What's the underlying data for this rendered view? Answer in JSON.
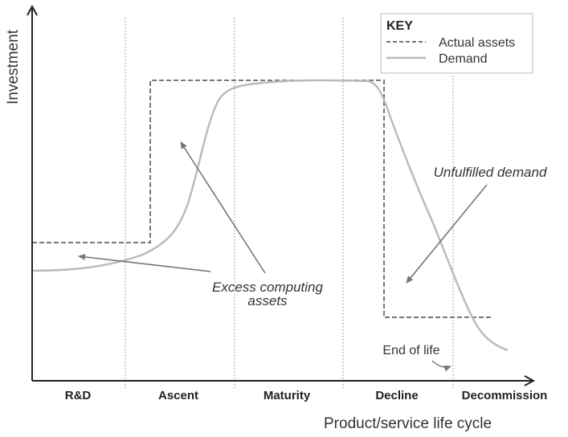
{
  "axes": {
    "y_title": "Investment",
    "x_title": "Product/service life cycle"
  },
  "phases": [
    "R&D",
    "Ascent",
    "Maturity",
    "Decline",
    "Decommission"
  ],
  "key": {
    "title": "KEY",
    "items": [
      {
        "label": "Actual assets",
        "style": "dashed",
        "color": "#777777"
      },
      {
        "label": "Demand",
        "style": "solid",
        "color": "#bbbbbb"
      }
    ]
  },
  "annotations": {
    "excess_line1": "Excess computing",
    "excess_line2": "assets",
    "unfulfilled": "Unfulfilled demand",
    "end_of_life": "End of life"
  },
  "colors": {
    "axis": "#222222",
    "actual_assets": "#777777",
    "demand": "#bbbbbb",
    "arrow": "#777777",
    "divider": "#888888"
  }
}
